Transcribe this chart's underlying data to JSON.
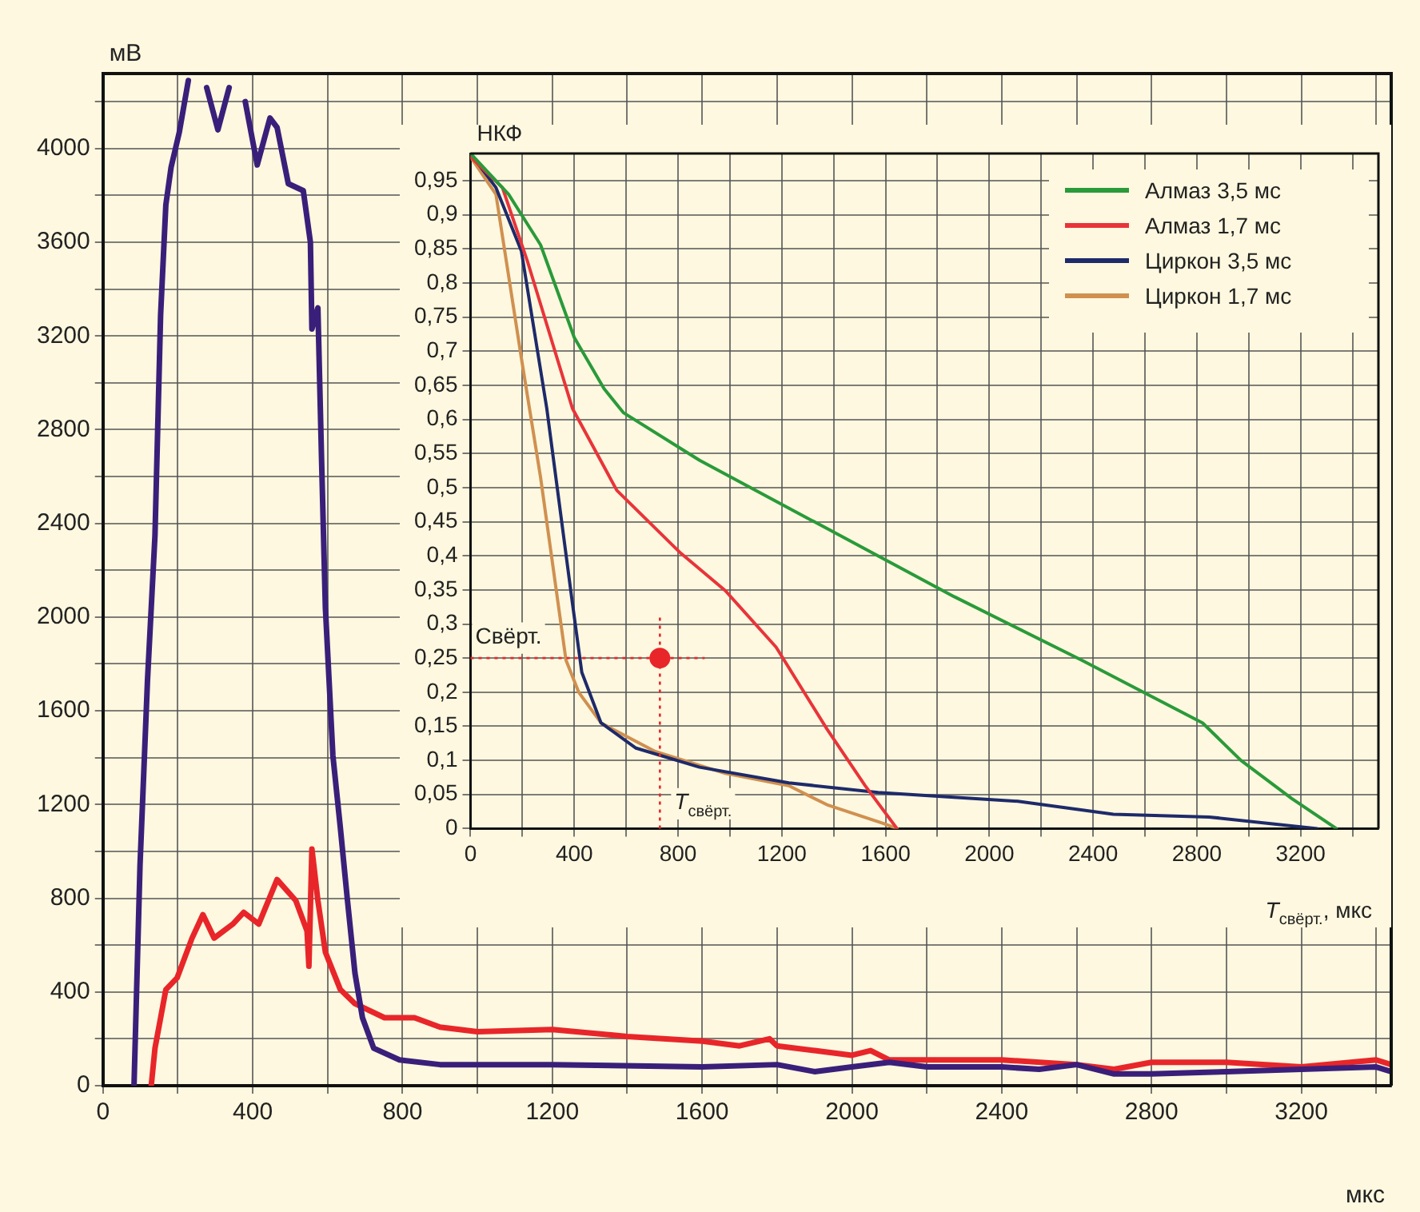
{
  "chart_data": [
    {
      "type": "line",
      "xlabel": "мкс",
      "ylabel": "мВ",
      "xlim": [
        0,
        3440
      ],
      "ylim": [
        0,
        4320
      ],
      "xticks": [
        0,
        {
          "value": 200,
          "label": null
        },
        400,
        {
          "value": 600,
          "label": null
        },
        800,
        {
          "value": 1000,
          "label": null
        },
        1200,
        {
          "value": 1400,
          "label": null
        },
        1600,
        {
          "value": 1800,
          "label": null
        },
        2000,
        {
          "value": 2200,
          "label": null
        },
        2400,
        {
          "value": 2600,
          "label": null
        },
        2800,
        {
          "value": 3000,
          "label": null
        },
        3200,
        {
          "value": 3400,
          "label": null
        }
      ],
      "yticks": [
        0,
        {
          "value": 200,
          "label": null
        },
        400,
        {
          "value": 600,
          "label": null
        },
        800,
        {
          "value": 1000,
          "label": null
        },
        1200,
        {
          "value": 1400,
          "label": null
        },
        1600,
        {
          "value": 1800,
          "label": null
        },
        2000,
        {
          "value": 2200,
          "label": null
        },
        2400,
        {
          "value": 2600,
          "label": null
        },
        2800,
        {
          "value": 3000,
          "label": null
        },
        3200,
        {
          "value": 3400,
          "label": null
        },
        3600,
        {
          "value": 3800,
          "label": null
        },
        4000,
        {
          "value": 4200,
          "label": null
        }
      ],
      "grid": true,
      "legend": false,
      "series": [
        {
          "color": "#3a1f7a",
          "x": [
            83,
            99,
            119,
            139,
            154,
            168,
            182,
            204,
            228,
            248,
            277,
            307,
            337,
            360,
            380,
            412,
            446,
            465,
            495,
            535,
            554,
            558,
            574,
            584,
            594,
            614,
            634,
            653,
            673,
            693,
            723,
            792,
            900,
            1200,
            1600,
            1800,
            1900,
            2000,
            2100,
            2200,
            2400,
            2500,
            2600,
            2700,
            2800,
            3000,
            3200,
            3400,
            3440
          ],
          "values": [
            0,
            940,
            1730,
            2350,
            3290,
            3760,
            3920,
            4070,
            4290,
            null,
            4260,
            4080,
            4260,
            null,
            4200,
            3930,
            4130,
            4090,
            3850,
            3820,
            3600,
            3230,
            3320,
            2660,
            2040,
            1410,
            1100,
            790,
            480,
            290,
            160,
            110,
            90,
            90,
            80,
            90,
            60,
            80,
            100,
            80,
            80,
            70,
            90,
            50,
            50,
            60,
            70,
            80,
            60
          ]
        },
        {
          "color": "#e8262a",
          "x": [
            129,
            139,
            168,
            198,
            238,
            267,
            297,
            347,
            376,
            416,
            465,
            515,
            545,
            550,
            558,
            574,
            594,
            634,
            673,
            752,
            832,
            900,
            1000,
            1200,
            1400,
            1600,
            1700,
            1780,
            1800,
            1900,
            2000,
            2050,
            2100,
            2400,
            2600,
            2700,
            2800,
            3000,
            3200,
            3400,
            3440
          ],
          "values": [
            0,
            160,
            410,
            460,
            630,
            730,
            630,
            690,
            740,
            690,
            880,
            790,
            660,
            510,
            1010,
            790,
            570,
            410,
            350,
            290,
            290,
            250,
            230,
            240,
            210,
            190,
            170,
            200,
            170,
            150,
            130,
            150,
            110,
            110,
            90,
            70,
            100,
            100,
            80,
            110,
            90
          ]
        }
      ]
    },
    {
      "type": "line",
      "xlabel": "T$_{свёрт.}$, мкс",
      "ylabel": "НКФ",
      "xlim": [
        0,
        3500
      ],
      "ylim": [
        0,
        0.99
      ],
      "xticks": [
        0,
        {
          "value": 200,
          "label": null
        },
        400,
        {
          "value": 600,
          "label": null
        },
        800,
        {
          "value": 1000,
          "label": null
        },
        1200,
        {
          "value": 1400,
          "label": null
        },
        1600,
        {
          "value": 1800,
          "label": null
        },
        2000,
        {
          "value": 2200,
          "label": null
        },
        2400,
        {
          "value": 2600,
          "label": null
        },
        2800,
        {
          "value": 3000,
          "label": null
        },
        3200,
        {
          "value": 3400,
          "label": null
        }
      ],
      "yticks": [
        0,
        {
          "value": 0.05,
          "label": "0,05"
        },
        {
          "value": 0.1,
          "label": "0,1"
        },
        {
          "value": 0.15,
          "label": "0,15"
        },
        {
          "value": 0.2,
          "label": "0,2"
        },
        {
          "value": 0.25,
          "label": "0,25"
        },
        {
          "value": 0.3,
          "label": "0,3"
        },
        {
          "value": 0.35,
          "label": "0,35"
        },
        {
          "value": 0.4,
          "label": "0,4"
        },
        {
          "value": 0.45,
          "label": "0,45"
        },
        {
          "value": 0.5,
          "label": "0,5"
        },
        {
          "value": 0.55,
          "label": "0,55"
        },
        {
          "value": 0.6,
          "label": "0,6"
        },
        {
          "value": 0.65,
          "label": "0,65"
        },
        {
          "value": 0.7,
          "label": "0,7"
        },
        {
          "value": 0.75,
          "label": "0,75"
        },
        {
          "value": 0.8,
          "label": "0,8"
        },
        {
          "value": 0.85,
          "label": "0,85"
        },
        {
          "value": 0.9,
          "label": "0,9"
        },
        {
          "value": 0.95,
          "label": "0,95"
        }
      ],
      "grid": true,
      "legend": "top right",
      "ref_lines": [
        {
          "axis": "y",
          "value": 0.25,
          "label": "Свёрт.",
          "color": "#e8262a",
          "line_style": "dotted"
        },
        {
          "axis": "x",
          "value": 730,
          "label": "T$_{свёрт.}$",
          "color": "#e8262a",
          "line_style": "dotted"
        }
      ],
      "series": [
        {
          "name": "Алмаз 3,5 мс",
          "color": "#2a9a3a",
          "x": [
            0,
            147,
            270,
            400,
            515,
            589,
            883,
            1374,
            1865,
            2356,
            2822,
            2970,
            3166,
            3338
          ],
          "values": [
            0.99,
            0.93,
            0.856,
            0.72,
            0.645,
            0.61,
            0.54,
            0.44,
            0.34,
            0.247,
            0.155,
            0.1,
            0.044,
            0
          ]
        },
        {
          "name": "Алмаз 1,7 мс",
          "color": "#e8343a",
          "x": [
            0,
            123,
            221,
            393,
            564,
            810,
            982,
            1178,
            1374,
            1521,
            1644
          ],
          "values": [
            0.985,
            0.94,
            0.83,
            0.616,
            0.496,
            0.404,
            0.349,
            0.266,
            0.146,
            0.063,
            0
          ]
        },
        {
          "name": "Циркон 3,5 мс",
          "color": "#1e2a6a",
          "x": [
            0,
            98,
            196,
            294,
            393,
            429,
            503,
            638,
            883,
            1227,
            1571,
            2110,
            2478,
            2847,
            3092,
            3264
          ],
          "values": [
            0.99,
            0.94,
            0.847,
            0.616,
            0.33,
            0.229,
            0.155,
            0.118,
            0.09,
            0.067,
            0.053,
            0.04,
            0.021,
            0.017,
            0.007,
            0
          ]
        },
        {
          "name": "Циркон 1,7 мс",
          "color": "#d09050",
          "x": [
            0,
            98,
            196,
            270,
            368,
            417,
            503,
            712,
            982,
            1227,
            1374,
            1595,
            1644
          ],
          "values": [
            0.985,
            0.93,
            0.69,
            0.515,
            0.247,
            0.2,
            0.155,
            0.113,
            0.081,
            0.063,
            0.035,
            0.007,
            0
          ]
        },
        {
          "type": "scatter",
          "color": "#e8262a",
          "x": [
            730
          ],
          "values": [
            0.25
          ]
        }
      ]
    }
  ]
}
